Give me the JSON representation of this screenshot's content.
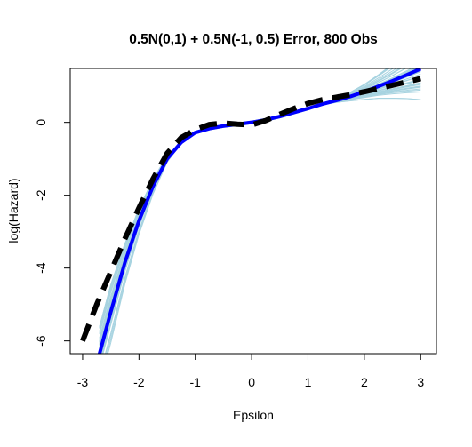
{
  "chart_data": {
    "type": "line",
    "title": "0.5N(0,1) + 0.5N(-1, 0.5) Error, 800 Obs",
    "xlabel": "Epsilon",
    "ylabel": "log(Hazard)",
    "xlim": [
      -3.22,
      3.28
    ],
    "ylim": [
      -6.35,
      1.48
    ],
    "x_ticks": [
      -3,
      -2,
      -1,
      0,
      1,
      2,
      3
    ],
    "y_ticks": [
      -6,
      -4,
      -2,
      0
    ],
    "grid": false,
    "legend": "none",
    "colors": {
      "bootstrap": "#a7d3e0",
      "estimate": "#0000ff",
      "truth": "#000000"
    },
    "bootstrap_count": 40,
    "series": [
      {
        "style": "solid-thick",
        "color": "#0000ff",
        "x": [
          -2.7,
          -2.5,
          -2.25,
          -2.0,
          -1.75,
          -1.5,
          -1.25,
          -1.0,
          -0.75,
          -0.5,
          -0.25,
          0.0,
          0.25,
          0.5,
          0.75,
          1.0,
          1.25,
          1.5,
          1.75,
          2.0,
          2.25,
          2.5,
          2.75,
          3.0
        ],
        "y": [
          -6.35,
          -5.2,
          -3.85,
          -2.7,
          -1.75,
          -1.0,
          -0.55,
          -0.28,
          -0.17,
          -0.1,
          -0.05,
          0.0,
          0.07,
          0.16,
          0.27,
          0.38,
          0.5,
          0.6,
          0.71,
          0.84,
          0.99,
          1.14,
          1.3,
          1.47
        ]
      },
      {
        "style": "dashed-thick",
        "color": "#000000",
        "x": [
          -3.0,
          -2.75,
          -2.5,
          -2.25,
          -2.0,
          -1.75,
          -1.5,
          -1.25,
          -1.0,
          -0.75,
          -0.5,
          -0.25,
          0.0,
          0.25,
          0.5,
          0.75,
          1.0,
          1.25,
          1.5,
          1.75,
          2.0,
          2.25,
          2.5,
          2.75,
          3.0
        ],
        "y": [
          -6.0,
          -5.0,
          -4.1,
          -3.2,
          -2.35,
          -1.55,
          -0.85,
          -0.42,
          -0.2,
          -0.06,
          -0.02,
          -0.05,
          -0.07,
          0.05,
          0.22,
          0.38,
          0.52,
          0.62,
          0.69,
          0.76,
          0.84,
          0.93,
          1.02,
          1.11,
          1.2
        ]
      }
    ]
  }
}
